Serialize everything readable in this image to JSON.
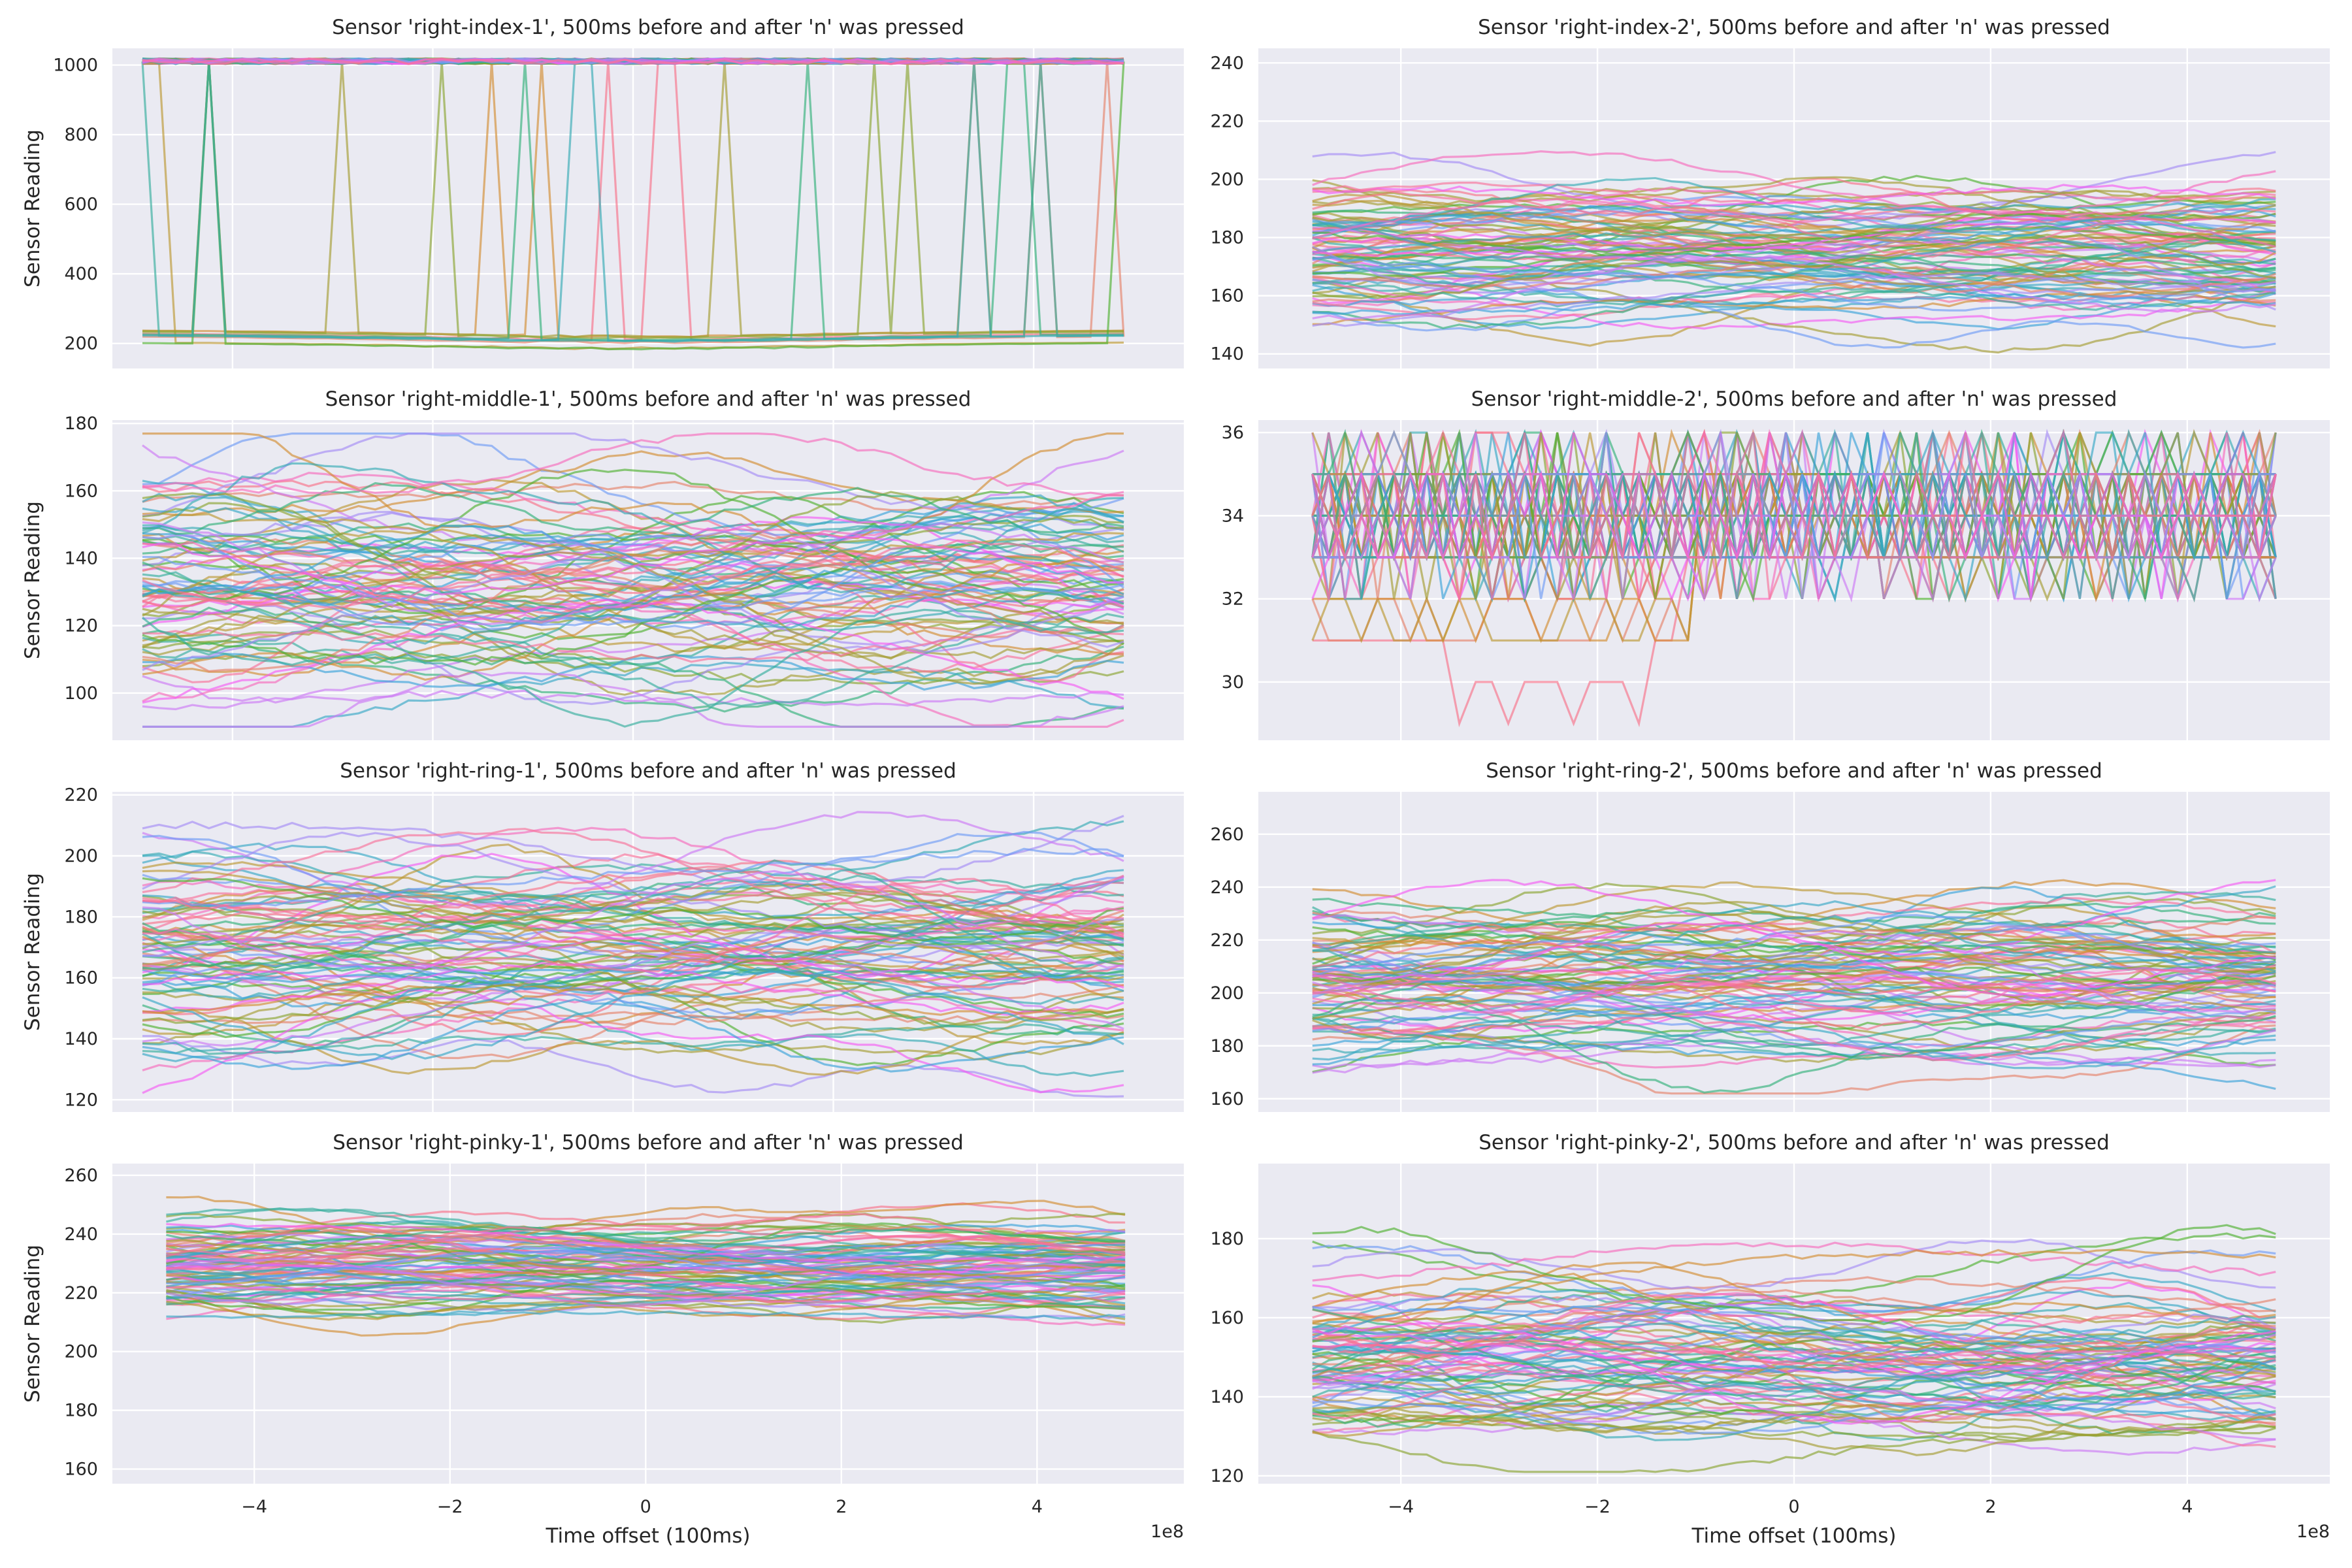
{
  "figure": {
    "x_offset_label": "1e8",
    "background": "#eaeaf2",
    "grid_color": "#ffffff",
    "palette": [
      "#f77189",
      "#e5836a",
      "#d28d32",
      "#bb9832",
      "#a59d32",
      "#8ba431",
      "#50b131",
      "#33b07a",
      "#35ad9c",
      "#36abb4",
      "#38a8c5",
      "#3ba3d9",
      "#6e9bf4",
      "#a48cf4",
      "#cc7af4",
      "#f45cf2",
      "#f66bbc",
      "#f7719a"
    ]
  },
  "chart_data": [
    {
      "type": "line",
      "title": "Sensor 'right-index-1', 500ms before and after 'n' was pressed",
      "xlabel": "",
      "ylabel": "Sensor Reading",
      "xlim": [
        -5.2,
        5.5
      ],
      "ylim": [
        128,
        1048
      ],
      "xticks": [
        -4,
        -2,
        0,
        2,
        4
      ],
      "yticks": [
        200,
        400,
        600,
        800,
        1000
      ],
      "xtick_labels_visible": false,
      "grid": true,
      "series_count": 90,
      "description_values": {
        "high_band": [
          1000,
          1020
        ],
        "low_band": [
          180,
          245
        ]
      },
      "generator": "saturate"
    },
    {
      "type": "line",
      "title": "Sensor 'right-index-2', 500ms before and after 'n' was pressed",
      "xlabel": "",
      "ylabel": "",
      "xlim": [
        -5.45,
        5.45
      ],
      "ylim": [
        135,
        245
      ],
      "xticks": [
        -4,
        -2,
        0,
        2,
        4
      ],
      "yticks": [
        140,
        160,
        180,
        200,
        220,
        240
      ],
      "xtick_labels_visible": false,
      "grid": true,
      "series_count": 90,
      "range": [
        140,
        240
      ],
      "center": 175,
      "spread": 14,
      "generator": "wave"
    },
    {
      "type": "line",
      "title": "Sensor 'right-middle-1', 500ms before and after 'n' was pressed",
      "xlabel": "",
      "ylabel": "Sensor Reading",
      "xlim": [
        -5.2,
        5.5
      ],
      "ylim": [
        86,
        181
      ],
      "xticks": [
        -4,
        -2,
        0,
        2,
        4
      ],
      "yticks": [
        100,
        120,
        140,
        160,
        180
      ],
      "xtick_labels_visible": false,
      "grid": true,
      "series_count": 90,
      "range": [
        90,
        177
      ],
      "center": 132,
      "spread": 20,
      "generator": "wave"
    },
    {
      "type": "line",
      "title": "Sensor 'right-middle-2', 500ms before and after 'n' was pressed",
      "xlabel": "",
      "ylabel": "",
      "xlim": [
        -5.45,
        5.45
      ],
      "ylim": [
        28.6,
        36.3
      ],
      "xticks": [
        -4,
        -2,
        0,
        2,
        4
      ],
      "yticks": [
        30,
        32,
        34,
        36
      ],
      "xtick_labels_visible": false,
      "grid": true,
      "series_count": 90,
      "range": [
        29,
        36
      ],
      "generator": "discrete"
    },
    {
      "type": "line",
      "title": "Sensor 'right-ring-1', 500ms before and after 'n' was pressed",
      "xlabel": "",
      "ylabel": "Sensor Reading",
      "xlim": [
        -5.2,
        5.5
      ],
      "ylim": [
        116,
        221
      ],
      "xticks": [
        -4,
        -2,
        0,
        2,
        4
      ],
      "yticks": [
        120,
        140,
        160,
        180,
        200,
        220
      ],
      "xtick_labels_visible": false,
      "grid": true,
      "series_count": 90,
      "range": [
        120,
        216
      ],
      "center": 168,
      "spread": 18,
      "generator": "wave"
    },
    {
      "type": "line",
      "title": "Sensor 'right-ring-2', 500ms before and after 'n' was pressed",
      "xlabel": "",
      "ylabel": "",
      "xlim": [
        -5.45,
        5.45
      ],
      "ylim": [
        155,
        276
      ],
      "xticks": [
        -4,
        -2,
        0,
        2,
        4
      ],
      "yticks": [
        160,
        180,
        200,
        220,
        240,
        260
      ],
      "xtick_labels_visible": false,
      "grid": true,
      "series_count": 90,
      "range": [
        162,
        270
      ],
      "center": 208,
      "spread": 18,
      "generator": "wave"
    },
    {
      "type": "line",
      "title": "Sensor 'right-pinky-1', 500ms before and after 'n' was pressed",
      "xlabel": "Time offset (100ms)",
      "ylabel": "Sensor Reading",
      "xlim": [
        -5.45,
        5.5
      ],
      "ylim": [
        155,
        264
      ],
      "xticks": [
        -4,
        -2,
        0,
        2,
        4
      ],
      "yticks": [
        160,
        180,
        200,
        220,
        240,
        260
      ],
      "xtick_labels": [
        "−4",
        "−2",
        "0",
        "2",
        "4"
      ],
      "xtick_labels_visible": true,
      "grid": true,
      "series_count": 90,
      "range": [
        160,
        258
      ],
      "center": 230,
      "spread": 10,
      "generator": "wave"
    },
    {
      "type": "line",
      "title": "Sensor 'right-pinky-2', 500ms before and after 'n' was pressed",
      "xlabel": "Time offset (100ms)",
      "ylabel": "",
      "xlim": [
        -5.45,
        5.45
      ],
      "ylim": [
        118,
        199
      ],
      "xticks": [
        -4,
        -2,
        0,
        2,
        4
      ],
      "yticks": [
        120,
        140,
        160,
        180
      ],
      "xtick_labels": [
        "−4",
        "−2",
        "0",
        "2",
        "4"
      ],
      "xtick_labels_visible": true,
      "grid": true,
      "series_count": 90,
      "range": [
        121,
        196
      ],
      "center": 153,
      "spread": 13,
      "generator": "wave"
    }
  ]
}
